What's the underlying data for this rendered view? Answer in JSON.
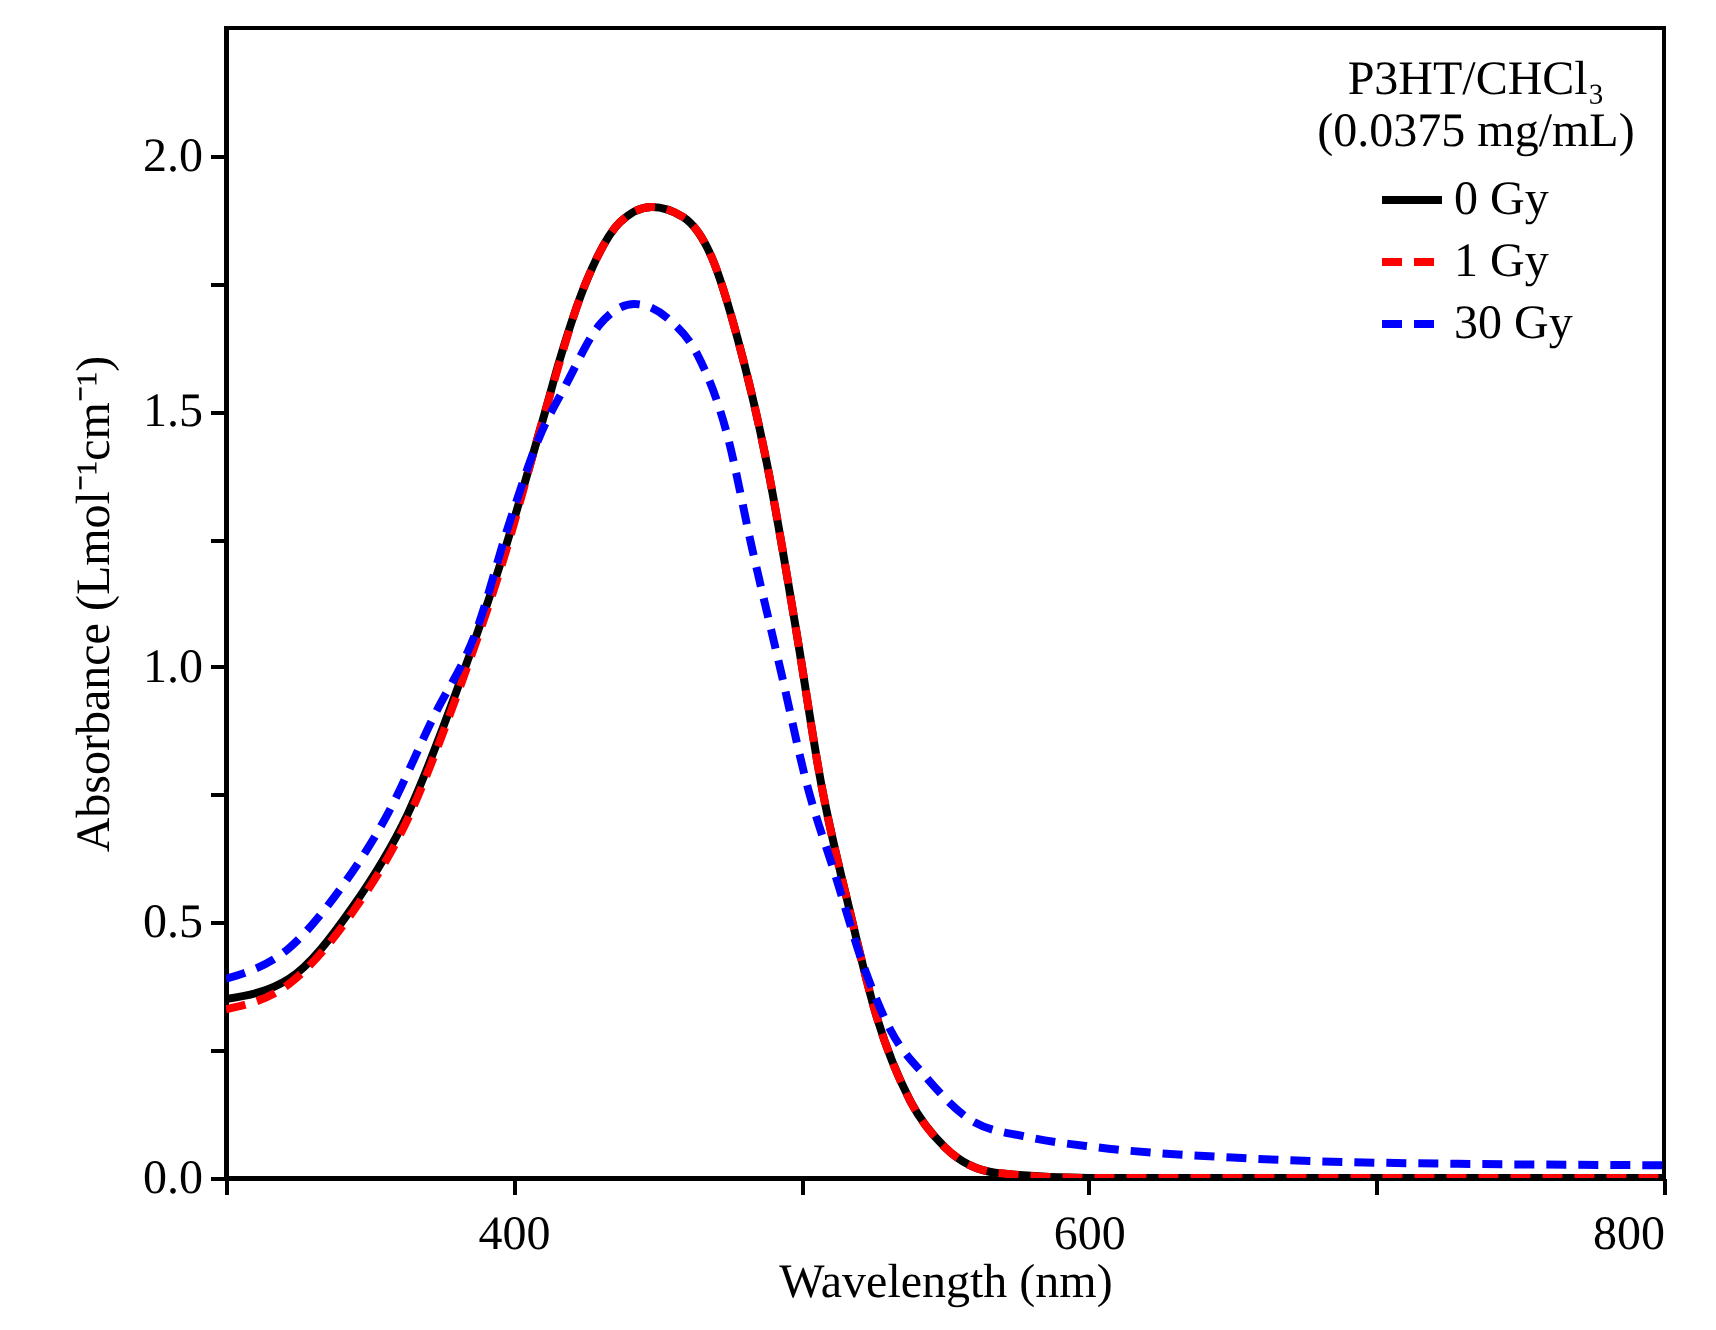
{
  "chart_data": {
    "type": "line",
    "xlabel": "Wavelength (nm)",
    "ylabel": "Absorbance (Lmol⁻¹cm⁻¹)",
    "legend_title": "P3HT/CHCl₃\n(0.0375 mg/mL)",
    "legend": "top right",
    "grid": false,
    "marker": "none",
    "xlim": [
      300,
      800
    ],
    "ylim": [
      0,
      2.25
    ],
    "xticks": [
      {
        "value": 300,
        "label": null
      },
      400,
      {
        "value": 500,
        "label": null
      },
      600,
      {
        "value": 700,
        "label": null
      },
      800
    ],
    "yticks": [
      {
        "value": 0,
        "label": "0.0"
      },
      {
        "value": 0.25,
        "label": null
      },
      0.5,
      {
        "value": 0.75,
        "label": null
      },
      {
        "value": 1,
        "label": "1.0"
      },
      {
        "value": 1.25,
        "label": null
      },
      1.5,
      {
        "value": 1.75,
        "label": null
      },
      {
        "value": 2,
        "label": "2.0"
      }
    ],
    "series": [
      {
        "name": "0 Gy",
        "color": "#000000",
        "line_style": "solid",
        "x": [
          300,
          322,
          344,
          363,
          380,
          397,
          411,
          416,
          425,
          437,
          448,
          459,
          469,
          478,
          488,
          498,
          507,
          517,
          526,
          538,
          550,
          568,
          600,
          700,
          800
        ],
        "values": [
          0.35,
          0.39,
          0.53,
          0.71,
          0.95,
          1.23,
          1.5,
          1.6,
          1.75,
          1.87,
          1.9,
          1.88,
          1.8,
          1.64,
          1.4,
          1.08,
          0.77,
          0.52,
          0.32,
          0.15,
          0.06,
          0.01,
          0.0,
          0.0,
          0.0
        ]
      },
      {
        "name": "1 Gy",
        "color": "#ff0000",
        "line_style": "dashed",
        "x": [
          300,
          322,
          344,
          363,
          380,
          397,
          411,
          425,
          437,
          448,
          459,
          469,
          478,
          488,
          498,
          507,
          517,
          526,
          538,
          550,
          568,
          600,
          700,
          800
        ],
        "values": [
          0.33,
          0.38,
          0.52,
          0.7,
          0.94,
          1.22,
          1.5,
          1.75,
          1.87,
          1.9,
          1.88,
          1.8,
          1.64,
          1.4,
          1.08,
          0.77,
          0.52,
          0.32,
          0.15,
          0.06,
          0.01,
          0.0,
          0.0,
          0.0
        ]
      },
      {
        "name": "30 Gy",
        "color": "#0000ff",
        "line_style": "dashed",
        "x": [
          300,
          322,
          339,
          356,
          372,
          387,
          399,
          409,
          418,
          430,
          442,
          454,
          464,
          474,
          483,
          493,
          502,
          512,
          522,
          531,
          543,
          560,
          579,
          603,
          650,
          700,
          800
        ],
        "values": [
          0.39,
          0.45,
          0.56,
          0.71,
          0.9,
          1.07,
          1.29,
          1.45,
          1.55,
          1.67,
          1.71,
          1.68,
          1.61,
          1.46,
          1.23,
          0.99,
          0.77,
          0.59,
          0.41,
          0.29,
          0.2,
          0.11,
          0.08,
          0.06,
          0.04,
          0.03,
          0.025
        ]
      }
    ]
  }
}
